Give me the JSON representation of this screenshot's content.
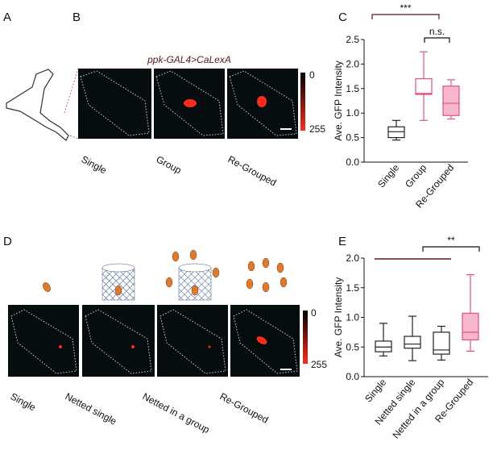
{
  "panels": {
    "a": "A",
    "b": "B",
    "c": "C",
    "d": "D",
    "e": "E",
    "genotype": "ppk-GAL4>CaLexA",
    "b_images": [
      "Single",
      "Group",
      "Re-Grouped"
    ],
    "d_images": [
      "Single",
      "Netted single",
      "Netted in a group",
      "Re-Grouped"
    ],
    "b_scale": [
      "0",
      "255"
    ],
    "d_scale": [
      "0",
      "255"
    ]
  },
  "chart_data": [
    {
      "type": "box",
      "ylabel": "Ave. GFP Intensity",
      "categories": [
        "Single",
        "Group",
        "Re-Grouped"
      ],
      "colors": [
        "#222222",
        "#e0508a",
        "#e0508a"
      ],
      "fills": [
        "#ffffff",
        "#ffffff",
        "#f6b6cc"
      ],
      "boxes": [
        {
          "min": 0.45,
          "q1": 0.5,
          "median": 0.62,
          "q3": 0.72,
          "max": 0.85
        },
        {
          "min": 0.85,
          "q1": 1.38,
          "median": 1.4,
          "q3": 1.7,
          "max": 2.25
        },
        {
          "min": 0.88,
          "q1": 0.95,
          "median": 1.2,
          "q3": 1.55,
          "max": 1.68
        }
      ],
      "ylim": [
        0,
        2.5
      ],
      "yticks": [
        {
          "value": 0,
          "label": "0.0"
        },
        0.5,
        {
          "value": 1,
          "label": "1.0"
        },
        1.5,
        {
          "value": 2,
          "label": "2.0"
        },
        2.5
      ],
      "annotations": [
        "***",
        "n.s."
      ]
    },
    {
      "type": "box",
      "ylabel": "Ave. GFP Intensity",
      "categories": [
        "Single",
        "Netted single",
        "Netted in a group",
        "Re-Grouped"
      ],
      "colors": [
        "#222222",
        "#222222",
        "#222222",
        "#e0508a"
      ],
      "fills": [
        "#ffffff",
        "#ffffff",
        "#ffffff",
        "#f6b6cc"
      ],
      "boxes": [
        {
          "min": 0.35,
          "q1": 0.42,
          "median": 0.5,
          "q3": 0.6,
          "max": 0.9
        },
        {
          "min": 0.27,
          "q1": 0.48,
          "median": 0.55,
          "q3": 0.68,
          "max": 1.02
        },
        {
          "min": 0.28,
          "q1": 0.38,
          "median": 0.45,
          "q3": 0.75,
          "max": 0.85
        },
        {
          "min": 0.43,
          "q1": 0.62,
          "median": 0.75,
          "q3": 1.07,
          "max": 1.72
        }
      ],
      "ylim": [
        0,
        2
      ],
      "yticks": [
        {
          "value": 0,
          "label": "0.0"
        },
        0.5,
        {
          "value": 1,
          "label": "1.0"
        },
        1.5,
        {
          "value": 2,
          "label": "2.0"
        }
      ],
      "annotations": [
        "**"
      ]
    }
  ]
}
